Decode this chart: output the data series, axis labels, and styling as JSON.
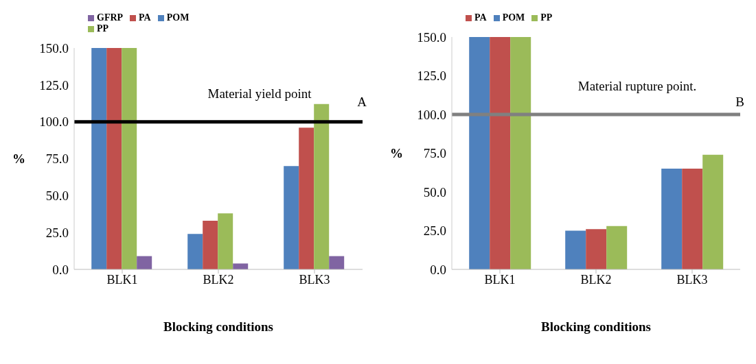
{
  "chart_data": [
    {
      "type": "bar",
      "categories": [
        "BLK1",
        "BLK2",
        "BLK3"
      ],
      "xlabel": "Blocking conditions",
      "ylabel": "%",
      "ylim": [
        0,
        150
      ],
      "yticks": [
        {
          "value": 0,
          "label": "0.0"
        },
        {
          "value": 25,
          "label": "25.0"
        },
        {
          "value": 50,
          "label": "50.0"
        },
        {
          "value": 75,
          "label": "75.0"
        },
        {
          "value": 100,
          "label": "100.0"
        },
        {
          "value": 125,
          "label": "125.0"
        },
        {
          "value": 150,
          "label": "150.0"
        }
      ],
      "grid": false,
      "legend": "top left",
      "series": [
        {
          "name": "POM",
          "color": "#4f81bd",
          "values": [
            150,
            24,
            70
          ]
        },
        {
          "name": "PA",
          "color": "#c0504d",
          "values": [
            150,
            33,
            96
          ]
        },
        {
          "name": "PP",
          "color": "#9bbb59",
          "values": [
            150,
            38,
            112
          ]
        },
        {
          "name": "GFRP",
          "color": "#8064a2",
          "values": [
            9,
            4,
            9
          ]
        }
      ],
      "ref_lines": [
        {
          "axis": "y",
          "value": 100,
          "label": "Material yield point",
          "color": "#000000"
        }
      ],
      "annotations": [
        "A"
      ]
    },
    {
      "type": "bar",
      "categories": [
        "BLK1",
        "BLK2",
        "BLK3"
      ],
      "xlabel": "Blocking conditions",
      "ylabel": "%",
      "ylim": [
        0,
        150
      ],
      "yticks": [
        {
          "value": 0,
          "label": "0.0"
        },
        {
          "value": 25,
          "label": "25.0"
        },
        {
          "value": 50,
          "label": "50.0"
        },
        {
          "value": 75,
          "label": "75.0"
        },
        {
          "value": 100,
          "label": "100.0"
        },
        {
          "value": 125,
          "label": "125.0"
        },
        {
          "value": 150,
          "label": "150.0"
        }
      ],
      "grid": false,
      "legend": "top left",
      "series": [
        {
          "name": "POM",
          "color": "#4f81bd",
          "values": [
            150,
            25,
            65
          ]
        },
        {
          "name": "PA",
          "color": "#c0504d",
          "values": [
            150,
            26,
            65
          ]
        },
        {
          "name": "PP",
          "color": "#9bbb59",
          "values": [
            150,
            28,
            74
          ]
        }
      ],
      "ref_lines": [
        {
          "axis": "y",
          "value": 100,
          "label": "Material rupture point.",
          "color": "#808080"
        }
      ],
      "annotations": [
        "B"
      ]
    }
  ]
}
